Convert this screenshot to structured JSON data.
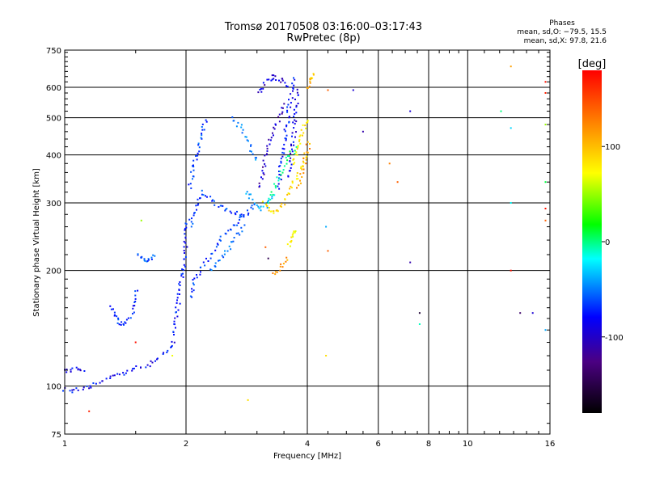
{
  "title": "Tromsø 20170508 03:16:00–03:17:43",
  "subtitle": "RwPretec (8p)",
  "phases": {
    "heading": "Phases",
    "line_o": "mean, sd,O: −79.5, 15.5",
    "line_x": "mean, sd,X:  97.8, 21.6"
  },
  "chart_data": {
    "type": "scatter",
    "title": "Tromsø 20170508 03:16:00–03:17:43",
    "subtitle": "RwPretec (8p)",
    "xlabel": "Frequency [MHz]",
    "ylabel": "Stationary phase Virtual Height [km]",
    "xscale": "log",
    "yscale": "log",
    "xlim": [
      1,
      16
    ],
    "ylim": [
      75,
      750
    ],
    "xticks": [
      1,
      2,
      4,
      6,
      8,
      10,
      16
    ],
    "xtick_labels": [
      "1",
      "2",
      "4",
      "6",
      "8",
      "10",
      "16"
    ],
    "yticks": [
      75,
      100,
      200,
      300,
      400,
      500,
      600,
      750
    ],
    "ytick_labels": [
      "75",
      "100",
      "200",
      "300",
      "400",
      "500",
      "600",
      "750"
    ],
    "grid": true,
    "colorbar": {
      "label": "[deg]",
      "range": [
        -180,
        180
      ],
      "ticks": [
        100,
        0,
        -100
      ],
      "tick_labels": [
        "100",
        "0",
        "-100"
      ],
      "colors": [
        "#000000",
        "#4b0082",
        "#0000ff",
        "#00ffff",
        "#00ff00",
        "#ffff00",
        "#ff8000",
        "#ff0000"
      ]
    },
    "traces": [
      {
        "x": [
          1.0,
          1.05,
          1.1,
          1.15,
          1.22,
          1.3,
          1.4,
          1.5,
          1.6,
          1.7,
          1.8,
          1.9
        ],
        "y": [
          98,
          97,
          99,
          100,
          102,
          105,
          108,
          111,
          113,
          118,
          124,
          132
        ],
        "phase": -100
      },
      {
        "x": [
          1.0,
          1.04,
          1.08,
          1.12
        ],
        "y": [
          109,
          110,
          111,
          110
        ],
        "phase": -105
      },
      {
        "x": [
          1.3,
          1.33,
          1.36,
          1.4,
          1.44,
          1.48,
          1.52
        ],
        "y": [
          162,
          152,
          146,
          145,
          148,
          158,
          180
        ],
        "phase": -90
      },
      {
        "x": [
          1.52,
          1.56,
          1.6,
          1.64,
          1.68
        ],
        "y": [
          220,
          214,
          213,
          216,
          222
        ],
        "phase": -80
      },
      {
        "x": [
          1.85,
          1.88,
          1.92,
          1.95,
          1.98,
          2.0,
          2.02
        ],
        "y": [
          135,
          150,
          170,
          190,
          215,
          245,
          275
        ],
        "phase": -95
      },
      {
        "x": [
          2.05,
          2.1,
          2.2,
          2.3,
          2.4,
          2.5,
          2.6,
          2.7,
          2.8,
          2.9,
          3.0
        ],
        "y": [
          170,
          190,
          205,
          220,
          235,
          250,
          260,
          270,
          280,
          290,
          300
        ],
        "phase": -90
      },
      {
        "x": [
          2.05,
          2.1,
          2.15,
          2.2,
          2.3,
          2.4,
          2.5,
          2.6,
          2.7,
          2.8
        ],
        "y": [
          260,
          280,
          300,
          320,
          310,
          295,
          290,
          285,
          280,
          275
        ],
        "phase": -85
      },
      {
        "x": [
          2.05,
          2.08,
          2.12,
          2.16,
          2.2,
          2.25
        ],
        "y": [
          330,
          370,
          400,
          430,
          460,
          500
        ],
        "phase": -85
      },
      {
        "x": [
          2.3,
          2.4,
          2.5,
          2.6,
          2.7,
          2.8
        ],
        "y": [
          200,
          210,
          220,
          235,
          250,
          265
        ],
        "phase": -75
      },
      {
        "x": [
          2.6,
          2.7,
          2.8,
          2.9,
          3.0
        ],
        "y": [
          500,
          480,
          450,
          420,
          380
        ],
        "phase": -70
      },
      {
        "x": [
          2.85,
          2.9,
          3.0,
          3.1,
          3.2,
          3.3
        ],
        "y": [
          320,
          310,
          295,
          290,
          300,
          320
        ],
        "phase": -60
      },
      {
        "x": [
          3.0,
          3.1,
          3.2,
          3.3,
          3.4,
          3.5,
          3.6
        ],
        "y": [
          580,
          600,
          630,
          640,
          630,
          620,
          600
        ],
        "phase": -110
      },
      {
        "x": [
          3.05,
          3.1,
          3.15,
          3.2,
          3.3,
          3.4,
          3.5
        ],
        "y": [
          330,
          360,
          400,
          430,
          460,
          500,
          550
        ],
        "phase": -115
      },
      {
        "x": [
          3.4,
          3.45,
          3.5,
          3.55,
          3.6,
          3.65,
          3.7
        ],
        "y": [
          330,
          380,
          420,
          470,
          520,
          580,
          640
        ],
        "phase": -95
      },
      {
        "x": [
          3.6,
          3.65,
          3.7,
          3.75,
          3.8
        ],
        "y": [
          350,
          400,
          450,
          520,
          600
        ],
        "phase": -105
      },
      {
        "x": [
          3.1,
          3.2,
          3.3,
          3.4,
          3.5,
          3.6,
          3.7,
          3.8,
          3.9,
          4.0
        ],
        "y": [
          300,
          290,
          285,
          290,
          300,
          320,
          340,
          360,
          380,
          400
        ],
        "phase": 110
      },
      {
        "x": [
          3.8,
          3.85,
          3.9,
          3.95,
          4.0,
          4.05
        ],
        "y": [
          330,
          350,
          370,
          390,
          410,
          440
        ],
        "phase": 130
      },
      {
        "x": [
          3.6,
          3.65,
          3.7,
          3.75
        ],
        "y": [
          230,
          240,
          250,
          255
        ],
        "phase": 100
      },
      {
        "x": [
          3.3,
          3.4,
          3.5,
          3.6
        ],
        "y": [
          195,
          200,
          210,
          220
        ],
        "phase": 130
      },
      {
        "x": [
          3.7,
          3.75,
          3.8,
          3.85,
          3.9,
          3.95,
          4.0
        ],
        "y": [
          380,
          400,
          420,
          440,
          460,
          480,
          500
        ],
        "phase": 105
      },
      {
        "x": [
          4.0,
          4.05,
          4.1,
          4.15
        ],
        "y": [
          600,
          620,
          640,
          650
        ],
        "phase": 120
      },
      {
        "x": [
          3.2,
          3.4,
          3.6,
          3.8
        ],
        "y": [
          300,
          350,
          400,
          420
        ],
        "phase": -20
      }
    ],
    "points": [
      {
        "x": 1.15,
        "y": 86,
        "phase": 170
      },
      {
        "x": 1.5,
        "y": 130,
        "phase": 175
      },
      {
        "x": 1.55,
        "y": 270,
        "phase": 60
      },
      {
        "x": 1.85,
        "y": 120,
        "phase": 95
      },
      {
        "x": 2.85,
        "y": 92,
        "phase": 110
      },
      {
        "x": 3.15,
        "y": 230,
        "phase": 150
      },
      {
        "x": 3.2,
        "y": 215,
        "phase": -150
      },
      {
        "x": 4.45,
        "y": 120,
        "phase": 110
      },
      {
        "x": 4.45,
        "y": 260,
        "phase": -60
      },
      {
        "x": 4.5,
        "y": 225,
        "phase": 150
      },
      {
        "x": 4.5,
        "y": 590,
        "phase": 150
      },
      {
        "x": 5.2,
        "y": 590,
        "phase": -110
      },
      {
        "x": 5.5,
        "y": 460,
        "phase": -120
      },
      {
        "x": 6.4,
        "y": 380,
        "phase": 140
      },
      {
        "x": 6.7,
        "y": 340,
        "phase": 150
      },
      {
        "x": 7.2,
        "y": 520,
        "phase": -110
      },
      {
        "x": 7.2,
        "y": 210,
        "phase": -120
      },
      {
        "x": 7.6,
        "y": 155,
        "phase": -160
      },
      {
        "x": 7.6,
        "y": 145,
        "phase": -30
      },
      {
        "x": 12.1,
        "y": 520,
        "phase": -20
      },
      {
        "x": 12.8,
        "y": 680,
        "phase": 130
      },
      {
        "x": 12.8,
        "y": 470,
        "phase": -50
      },
      {
        "x": 12.8,
        "y": 300,
        "phase": -40
      },
      {
        "x": 12.8,
        "y": 200,
        "phase": 175
      },
      {
        "x": 13.5,
        "y": 155,
        "phase": -140
      },
      {
        "x": 14.5,
        "y": 155,
        "phase": -110
      },
      {
        "x": 15.6,
        "y": 620,
        "phase": 175
      },
      {
        "x": 15.6,
        "y": 580,
        "phase": 170
      },
      {
        "x": 15.6,
        "y": 480,
        "phase": 60
      },
      {
        "x": 15.6,
        "y": 340,
        "phase": -10
      },
      {
        "x": 15.6,
        "y": 290,
        "phase": 175
      },
      {
        "x": 15.6,
        "y": 270,
        "phase": 150
      },
      {
        "x": 15.6,
        "y": 140,
        "phase": -60
      }
    ]
  }
}
